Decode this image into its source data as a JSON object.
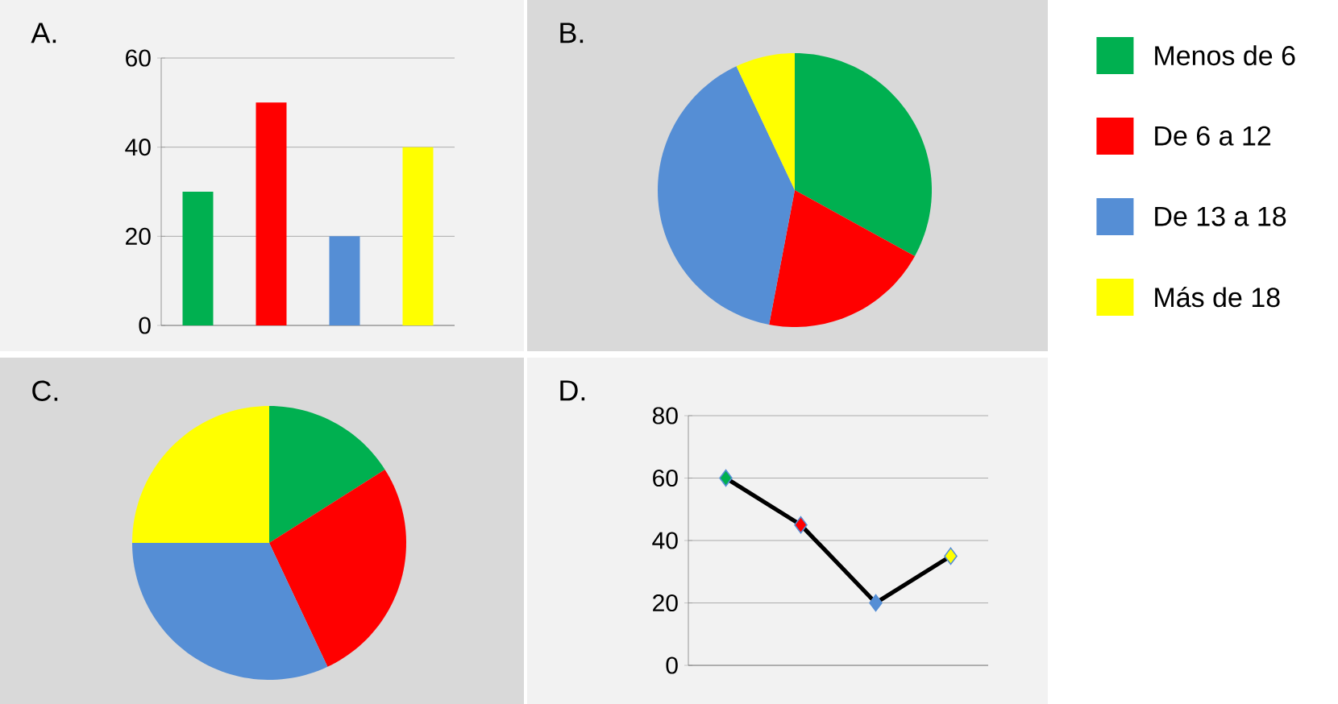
{
  "chart_data": [
    {
      "type": "bar",
      "title": "A.",
      "categories": [
        null,
        null,
        null,
        null
      ],
      "values": [
        30,
        50,
        20,
        40
      ],
      "colors": [
        "#00b050",
        "#ff0000",
        "#558ed5",
        "#ffff00"
      ],
      "ylim": [
        0,
        60
      ],
      "yticks": [
        0,
        20,
        40,
        60
      ],
      "grid": "y",
      "tick_labels": "y"
    },
    {
      "type": "pie",
      "title": "B.",
      "categories": [
        "Menos de 6",
        "De 6 a 12",
        "De 13 a 18",
        "Más de 18"
      ],
      "values": [
        33,
        20,
        40,
        7
      ],
      "colors": [
        "#00b050",
        "#ff0000",
        "#558ed5",
        "#ffff00"
      ],
      "legend": "right"
    },
    {
      "type": "pie",
      "title": "C.",
      "categories": [
        null,
        null,
        null,
        null
      ],
      "values": [
        16,
        27,
        32,
        25
      ],
      "colors": [
        "#00b050",
        "#ff0000",
        "#558ed5",
        "#ffff00"
      ]
    },
    {
      "type": "line",
      "title": "D.",
      "categories": [
        null,
        null,
        null,
        null
      ],
      "values": [
        60,
        45,
        20,
        35
      ],
      "color": "#000000",
      "colors": [
        "#00b050",
        "#ff0000",
        "#558ed5",
        "#ffff00"
      ],
      "marker": "diamond",
      "ylim": [
        0,
        80
      ],
      "yticks": [
        0,
        20,
        40,
        60,
        80
      ],
      "grid": "y",
      "tick_labels": "y"
    }
  ]
}
